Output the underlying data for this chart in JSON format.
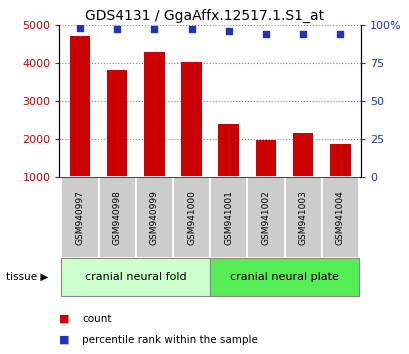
{
  "title": "GDS4131 / GgaAffx.12517.1.S1_at",
  "samples": [
    "GSM940997",
    "GSM940998",
    "GSM940999",
    "GSM941000",
    "GSM941001",
    "GSM941002",
    "GSM941003",
    "GSM941004"
  ],
  "counts": [
    4700,
    3820,
    4280,
    4010,
    2400,
    1960,
    2160,
    1870
  ],
  "percentiles": [
    98,
    97,
    97,
    97,
    96,
    94,
    94,
    94
  ],
  "bar_color": "#cc0000",
  "dot_color": "#2233bb",
  "ylim_left": [
    1000,
    5000
  ],
  "yticks_left": [
    1000,
    2000,
    3000,
    4000,
    5000
  ],
  "ylim_right": [
    0,
    100
  ],
  "yticks_right": [
    0,
    25,
    50,
    75,
    100
  ],
  "group1_label": "cranial neural fold",
  "group2_label": "cranial neural plate",
  "group1_indices": [
    0,
    1,
    2,
    3
  ],
  "group2_indices": [
    4,
    5,
    6,
    7
  ],
  "group1_bg": "#ccffcc",
  "group2_bg": "#55ee55",
  "tissue_label": "tissue",
  "legend_count": "count",
  "legend_percentile": "percentile rank within the sample",
  "xticklabel_bg": "#cccccc",
  "bar_bottom": 1000
}
